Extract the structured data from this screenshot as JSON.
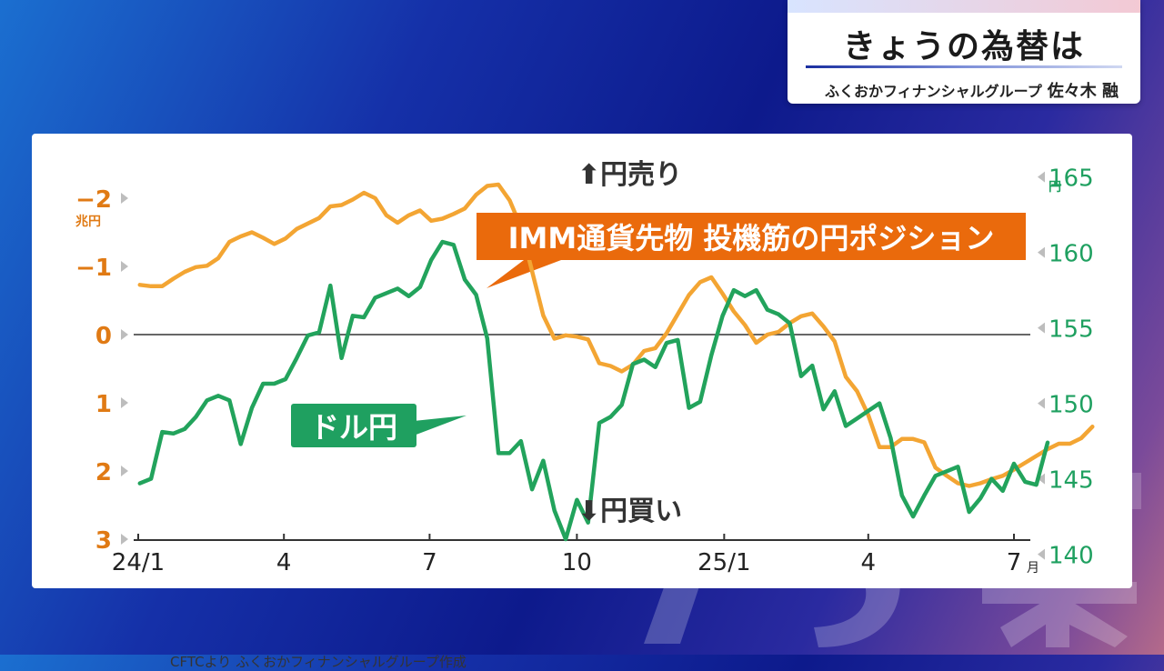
{
  "header": {
    "title": "きょうの為替は",
    "subtitle_org": "ふくおかフィナンシャルグループ",
    "subtitle_name": "佐々木 融"
  },
  "annotations": {
    "yen_sell": "円売り",
    "yen_buy": "円買い",
    "source": "CFTCより ふくおかフィナンシャルグループ作成",
    "left_unit": "兆円",
    "right_unit": "円",
    "month_suffix": "月"
  },
  "colors": {
    "position": "#f3a533",
    "usdjpy": "#22a35c",
    "position_label": "#ea6a0c",
    "usdjpy_label": "#1fa060"
  },
  "chart_data": {
    "type": "line",
    "x_ticks": [
      "24/1",
      "4",
      "7",
      "10",
      "25/1",
      "4",
      "7"
    ],
    "y_left": {
      "label": "兆円",
      "inverted": true,
      "ticks": [
        -2,
        -1,
        0,
        1,
        2,
        3
      ],
      "tick_labels": [
        "−2",
        "−1",
        "0",
        "1",
        "2",
        "3"
      ],
      "range": [
        -2.5,
        3
      ]
    },
    "y_right": {
      "label": "円",
      "ticks": [
        140,
        145,
        150,
        155,
        160,
        165
      ],
      "range": [
        140,
        165.5
      ]
    },
    "series": [
      {
        "name": "IMM通貨先物 投機筋の円ポジション",
        "axis": "left",
        "points": [
          [
            "2024-01-02",
            -0.73
          ],
          [
            "2024-01-09",
            -0.71
          ],
          [
            "2024-01-16",
            -0.71
          ],
          [
            "2024-01-23",
            -0.82
          ],
          [
            "2024-01-30",
            -0.92
          ],
          [
            "2024-02-06",
            -0.99
          ],
          [
            "2024-02-13",
            -1.01
          ],
          [
            "2024-02-20",
            -1.12
          ],
          [
            "2024-02-27",
            -1.36
          ],
          [
            "2024-03-05",
            -1.44
          ],
          [
            "2024-03-12",
            -1.5
          ],
          [
            "2024-03-19",
            -1.42
          ],
          [
            "2024-03-26",
            -1.33
          ],
          [
            "2024-04-02",
            -1.41
          ],
          [
            "2024-04-09",
            -1.55
          ],
          [
            "2024-04-16",
            -1.63
          ],
          [
            "2024-04-23",
            -1.71
          ],
          [
            "2024-04-30",
            -1.88
          ],
          [
            "2024-05-07",
            -1.9
          ],
          [
            "2024-05-14",
            -1.98
          ],
          [
            "2024-05-21",
            -2.08
          ],
          [
            "2024-05-28",
            -2.0
          ],
          [
            "2024-06-04",
            -1.75
          ],
          [
            "2024-06-11",
            -1.64
          ],
          [
            "2024-06-18",
            -1.75
          ],
          [
            "2024-06-25",
            -1.82
          ],
          [
            "2024-07-02",
            -1.67
          ],
          [
            "2024-07-09",
            -1.7
          ],
          [
            "2024-07-16",
            -1.77
          ],
          [
            "2024-07-23",
            -1.85
          ],
          [
            "2024-07-30",
            -2.05
          ],
          [
            "2024-08-06",
            -2.18
          ],
          [
            "2024-08-13",
            -2.2
          ],
          [
            "2024-08-20",
            -1.97
          ],
          [
            "2024-08-27",
            -1.58
          ],
          [
            "2024-09-03",
            -0.93
          ],
          [
            "2024-09-10",
            -0.28
          ],
          [
            "2024-09-17",
            0.06
          ],
          [
            "2024-09-24",
            0.01
          ],
          [
            "2024-10-01",
            0.03
          ],
          [
            "2024-10-08",
            0.07
          ],
          [
            "2024-10-15",
            0.42
          ],
          [
            "2024-10-22",
            0.46
          ],
          [
            "2024-10-29",
            0.54
          ],
          [
            "2024-11-05",
            0.44
          ],
          [
            "2024-11-12",
            0.24
          ],
          [
            "2024-11-19",
            0.2
          ],
          [
            "2024-11-26",
            -0.02
          ],
          [
            "2024-12-03",
            -0.3
          ],
          [
            "2024-12-10",
            -0.58
          ],
          [
            "2024-12-17",
            -0.77
          ],
          [
            "2024-12-24",
            -0.84
          ],
          [
            "2024-12-31",
            -0.6
          ],
          [
            "2025-01-07",
            -0.34
          ],
          [
            "2025-01-14",
            -0.14
          ],
          [
            "2025-01-21",
            0.12
          ],
          [
            "2025-01-28",
            0.0
          ],
          [
            "2025-02-04",
            -0.04
          ],
          [
            "2025-02-11",
            -0.17
          ],
          [
            "2025-02-18",
            -0.27
          ],
          [
            "2025-02-25",
            -0.31
          ],
          [
            "2025-03-04",
            -0.12
          ],
          [
            "2025-03-11",
            0.1
          ],
          [
            "2025-03-18",
            0.62
          ],
          [
            "2025-03-25",
            0.83
          ],
          [
            "2025-04-01",
            1.18
          ],
          [
            "2025-04-08",
            1.65
          ],
          [
            "2025-04-15",
            1.65
          ],
          [
            "2025-04-22",
            1.53
          ],
          [
            "2025-04-29",
            1.53
          ],
          [
            "2025-05-06",
            1.58
          ],
          [
            "2025-05-13",
            1.95
          ],
          [
            "2025-05-20",
            2.07
          ],
          [
            "2025-05-27",
            2.18
          ],
          [
            "2025-06-03",
            2.22
          ],
          [
            "2025-06-10",
            2.18
          ],
          [
            "2025-06-17",
            2.12
          ],
          [
            "2025-06-24",
            2.07
          ],
          [
            "2025-07-01",
            1.98
          ],
          [
            "2025-07-08",
            1.88
          ],
          [
            "2025-07-15",
            1.78
          ],
          [
            "2025-07-22",
            1.68
          ],
          [
            "2025-07-29",
            1.6
          ],
          [
            "2025-08-05",
            1.6
          ],
          [
            "2025-08-12",
            1.52
          ],
          [
            "2025-08-19",
            1.35
          ]
        ]
      },
      {
        "name": "ドル円",
        "axis": "right",
        "points": [
          [
            "2024-01-02",
            144.7
          ],
          [
            "2024-01-09",
            145.0
          ],
          [
            "2024-01-16",
            148.1
          ],
          [
            "2024-01-23",
            148.0
          ],
          [
            "2024-01-30",
            148.3
          ],
          [
            "2024-02-06",
            149.1
          ],
          [
            "2024-02-13",
            150.2
          ],
          [
            "2024-02-20",
            150.5
          ],
          [
            "2024-02-27",
            150.2
          ],
          [
            "2024-03-05",
            147.3
          ],
          [
            "2024-03-12",
            149.7
          ],
          [
            "2024-03-19",
            151.3
          ],
          [
            "2024-03-26",
            151.3
          ],
          [
            "2024-04-02",
            151.6
          ],
          [
            "2024-04-09",
            153.0
          ],
          [
            "2024-04-16",
            154.5
          ],
          [
            "2024-04-23",
            154.7
          ],
          [
            "2024-04-30",
            157.8
          ],
          [
            "2024-05-07",
            153.0
          ],
          [
            "2024-05-14",
            155.8
          ],
          [
            "2024-05-21",
            155.7
          ],
          [
            "2024-05-28",
            157.0
          ],
          [
            "2024-06-04",
            157.3
          ],
          [
            "2024-06-11",
            157.6
          ],
          [
            "2024-06-18",
            157.1
          ],
          [
            "2024-06-25",
            157.7
          ],
          [
            "2024-07-02",
            159.5
          ],
          [
            "2024-07-09",
            160.7
          ],
          [
            "2024-07-16",
            160.5
          ],
          [
            "2024-07-23",
            158.2
          ],
          [
            "2024-07-30",
            157.2
          ],
          [
            "2024-08-06",
            154.3
          ],
          [
            "2024-08-13",
            146.7
          ],
          [
            "2024-08-20",
            146.7
          ],
          [
            "2024-08-27",
            147.5
          ],
          [
            "2024-09-03",
            144.3
          ],
          [
            "2024-09-10",
            146.2
          ],
          [
            "2024-09-17",
            142.9
          ],
          [
            "2024-09-24",
            141.0
          ],
          [
            "2024-10-01",
            143.6
          ],
          [
            "2024-10-08",
            142.1
          ],
          [
            "2024-10-15",
            148.7
          ],
          [
            "2024-10-22",
            149.1
          ],
          [
            "2024-10-29",
            149.9
          ],
          [
            "2024-11-05",
            152.6
          ],
          [
            "2024-11-12",
            152.9
          ],
          [
            "2024-11-19",
            152.4
          ],
          [
            "2024-11-26",
            154.0
          ],
          [
            "2024-12-03",
            154.2
          ],
          [
            "2024-12-10",
            149.7
          ],
          [
            "2024-12-17",
            150.1
          ],
          [
            "2024-12-24",
            153.2
          ],
          [
            "2024-12-31",
            155.8
          ],
          [
            "2025-01-07",
            157.5
          ],
          [
            "2025-01-14",
            157.1
          ],
          [
            "2025-01-21",
            157.5
          ],
          [
            "2025-01-28",
            156.2
          ],
          [
            "2025-02-04",
            155.9
          ],
          [
            "2025-02-11",
            155.3
          ],
          [
            "2025-02-18",
            151.8
          ],
          [
            "2025-02-25",
            152.5
          ],
          [
            "2025-03-04",
            149.6
          ],
          [
            "2025-03-11",
            150.8
          ],
          [
            "2025-03-18",
            148.5
          ],
          [
            "2025-03-25",
            149.0
          ],
          [
            "2025-04-01",
            149.5
          ],
          [
            "2025-04-08",
            150.0
          ],
          [
            "2025-04-15",
            147.7
          ],
          [
            "2025-04-22",
            143.9
          ],
          [
            "2025-04-29",
            142.5
          ],
          [
            "2025-05-06",
            143.9
          ],
          [
            "2025-05-13",
            145.2
          ],
          [
            "2025-05-20",
            145.5
          ],
          [
            "2025-05-27",
            145.8
          ],
          [
            "2025-06-03",
            142.8
          ],
          [
            "2025-06-10",
            143.7
          ],
          [
            "2025-06-17",
            145.0
          ],
          [
            "2025-06-24",
            144.2
          ],
          [
            "2025-07-01",
            146.0
          ],
          [
            "2025-07-08",
            144.8
          ],
          [
            "2025-07-15",
            144.6
          ],
          [
            "2025-07-22",
            147.4
          ]
        ]
      }
    ]
  }
}
